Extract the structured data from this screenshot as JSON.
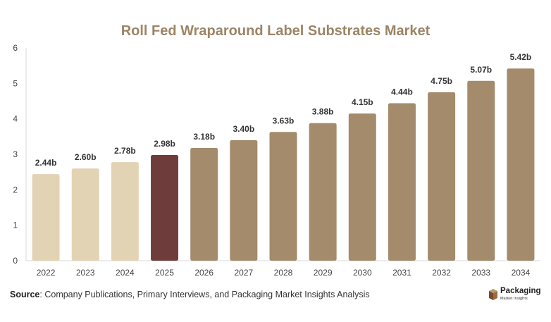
{
  "chart_data": {
    "type": "bar",
    "title": "Roll Fed Wraparound Label Substrates Market",
    "categories": [
      "2022",
      "2023",
      "2024",
      "2025",
      "2026",
      "2027",
      "2028",
      "2029",
      "2030",
      "2031",
      "2032",
      "2033",
      "2034"
    ],
    "values": [
      2.44,
      2.6,
      2.78,
      2.98,
      3.18,
      3.4,
      3.63,
      3.88,
      4.15,
      4.44,
      4.75,
      5.07,
      5.42
    ],
    "data_labels": [
      "2.44b",
      "2.60b",
      "2.78b",
      "2.98b",
      "3.18b",
      "3.40b",
      "3.63b",
      "3.88b",
      "4.15b",
      "4.44b",
      "4.75b",
      "5.07b",
      "5.42b"
    ],
    "xlabel": "",
    "ylabel": "",
    "ylim": [
      0,
      6
    ],
    "yticks": [
      0,
      1,
      2,
      3,
      4,
      5,
      6
    ],
    "grid": false,
    "bar_colors": [
      "#e3d3b5",
      "#e3d3b5",
      "#e3d3b5",
      "#6f3c3c",
      "#a38b6b",
      "#a38b6b",
      "#a38b6b",
      "#a38b6b",
      "#a38b6b",
      "#a38b6b",
      "#a38b6b",
      "#a38b6b",
      "#a38b6b"
    ]
  },
  "footer": {
    "source_label": "Source",
    "source_text": ": Company Publications, Primary Interviews, and Packaging Market Insights Analysis"
  },
  "brand": {
    "name": "Packaging",
    "subtitle": "Market Insights",
    "icon": "box-logo-icon"
  }
}
